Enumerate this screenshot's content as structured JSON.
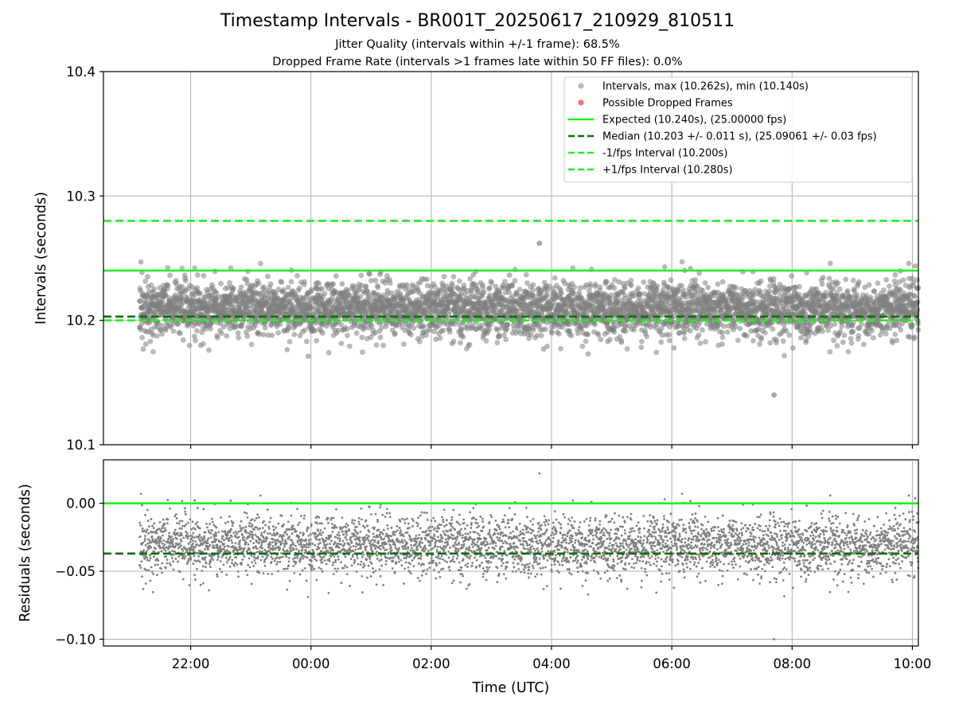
{
  "header": {
    "title": "Timestamp Intervals - BR001T_20250617_210929_810511",
    "subtitle_jitter": "Jitter Quality (intervals within +/-1 frame): 68.5%",
    "subtitle_dropped": "Dropped Frame Rate (intervals >1 frames late within 50 FF files): 0.0%"
  },
  "colors": {
    "points": "#808080",
    "dropped": "#ff4040",
    "expected": "#22ee22",
    "median": "#0a6e0a",
    "fps_bound": "#22ee22",
    "grid": "#b0b0b0"
  },
  "chart_data": [
    {
      "type": "scatter",
      "ylabel": "Intervals (seconds)",
      "ylim": [
        10.1,
        10.4
      ],
      "yticks": [
        10.1,
        10.2,
        10.3,
        10.4
      ],
      "ytick_labels": [
        "10.1",
        "10.2",
        "10.3",
        "10.4"
      ],
      "x_range_hours": [
        20.55,
        34.1
      ],
      "grid": true,
      "legend_position": "top-right",
      "legend": [
        "Intervals, max (10.262s), min (10.140s)",
        "Possible Dropped Frames",
        "Expected (10.240s), (25.00000 fps)",
        "Median (10.203 +/- 0.011 s), (25.09061 +/- 0.03 fps)",
        "-1/fps Interval (10.200s)",
        "+1/fps Interval (10.280s)"
      ],
      "reference_lines": {
        "expected": 10.24,
        "median": 10.203,
        "minus_1fps": 10.2,
        "plus_1fps": 10.28
      },
      "series_stats": {
        "start_hour": 21.15,
        "end_hour": 34.1,
        "count": 4560,
        "mean": 10.209,
        "spread": 0.011,
        "max": 10.262,
        "min": 10.14
      }
    },
    {
      "type": "scatter",
      "ylabel": "Residuals (seconds)",
      "xlabel": "Time (UTC)",
      "ylim": [
        -0.105,
        0.032
      ],
      "yticks": [
        0.0,
        -0.05,
        -0.1
      ],
      "ytick_labels": [
        "0.00",
        "−0.05",
        "−0.10"
      ],
      "x_ticks_hours": [
        22,
        24,
        26,
        28,
        30,
        32,
        34
      ],
      "x_tick_labels": [
        "22:00",
        "00:00",
        "02:00",
        "04:00",
        "06:00",
        "08:00",
        "10:00"
      ],
      "grid": true,
      "reference_lines": {
        "zero": 0.0,
        "median": -0.037
      }
    }
  ]
}
